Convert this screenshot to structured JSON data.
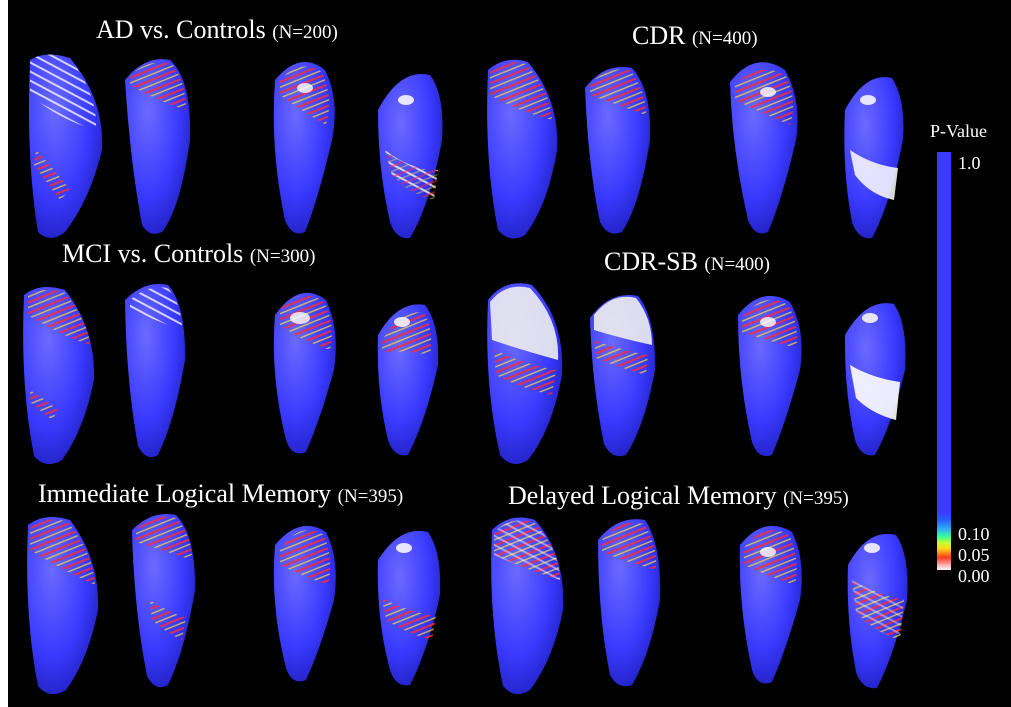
{
  "figure": {
    "background_color": "#000000",
    "surface_color": "#3a3aff",
    "highlight_colors": [
      "#ffffff",
      "#ff2a2a",
      "#ffe01a",
      "#33ff99",
      "#2fb0ff"
    ]
  },
  "rows": [
    {
      "panels": [
        {
          "title": "AD vs. Controls",
          "n": "(N=200)"
        },
        {
          "title": "CDR",
          "n": "(N=400)"
        }
      ]
    },
    {
      "panels": [
        {
          "title": "MCI vs. Controls",
          "n": "(N=300)"
        },
        {
          "title": "CDR-SB",
          "n": "(N=400)"
        }
      ]
    },
    {
      "panels": [
        {
          "title": "Immediate Logical Memory",
          "n": "(N=395)"
        },
        {
          "title": "Delayed Logical Memory",
          "n": "(N=395)"
        }
      ]
    }
  ],
  "legend": {
    "title": "P-Value",
    "ticks": [
      "1.0",
      "0.10",
      "0.05",
      "0.00"
    ]
  }
}
